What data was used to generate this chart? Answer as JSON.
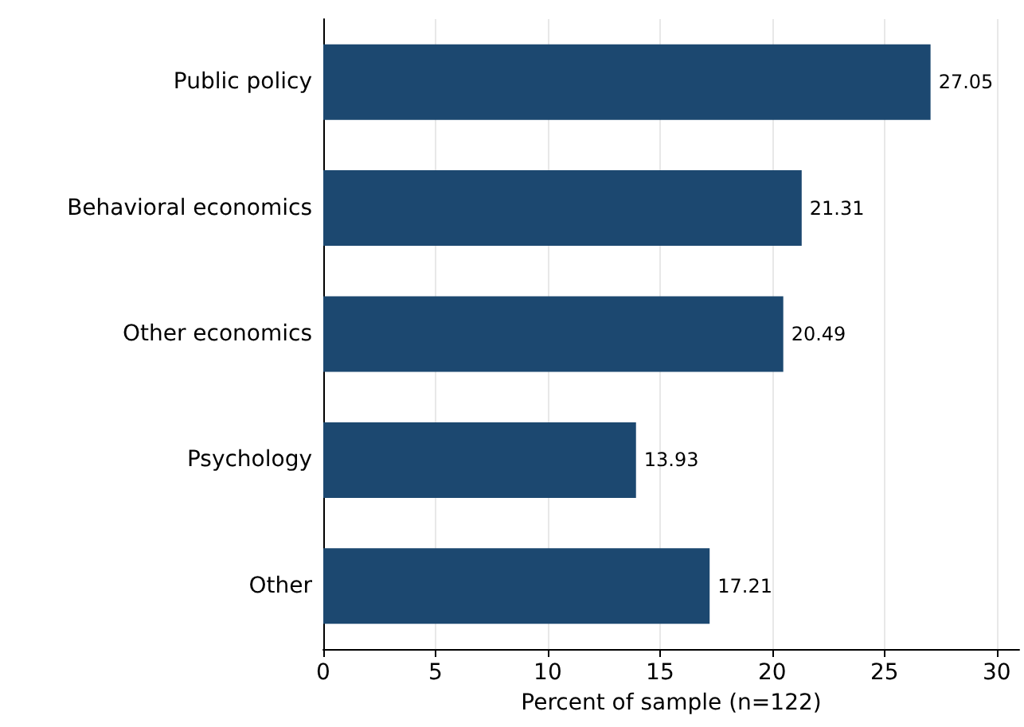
{
  "chart_data": {
    "type": "bar",
    "orientation": "horizontal",
    "xlabel": "Percent of sample (n=122)",
    "categories": [
      "Public policy",
      "Behavioral economics",
      "Other economics",
      "Psychology",
      "Other"
    ],
    "values": [
      27.05,
      21.31,
      20.49,
      13.93,
      17.21
    ],
    "color": "#1c4870",
    "data_labels": true,
    "xlim": [
      0,
      31
    ],
    "xticks": [
      0,
      5,
      10,
      15,
      20,
      25,
      30
    ],
    "grid": "x"
  }
}
